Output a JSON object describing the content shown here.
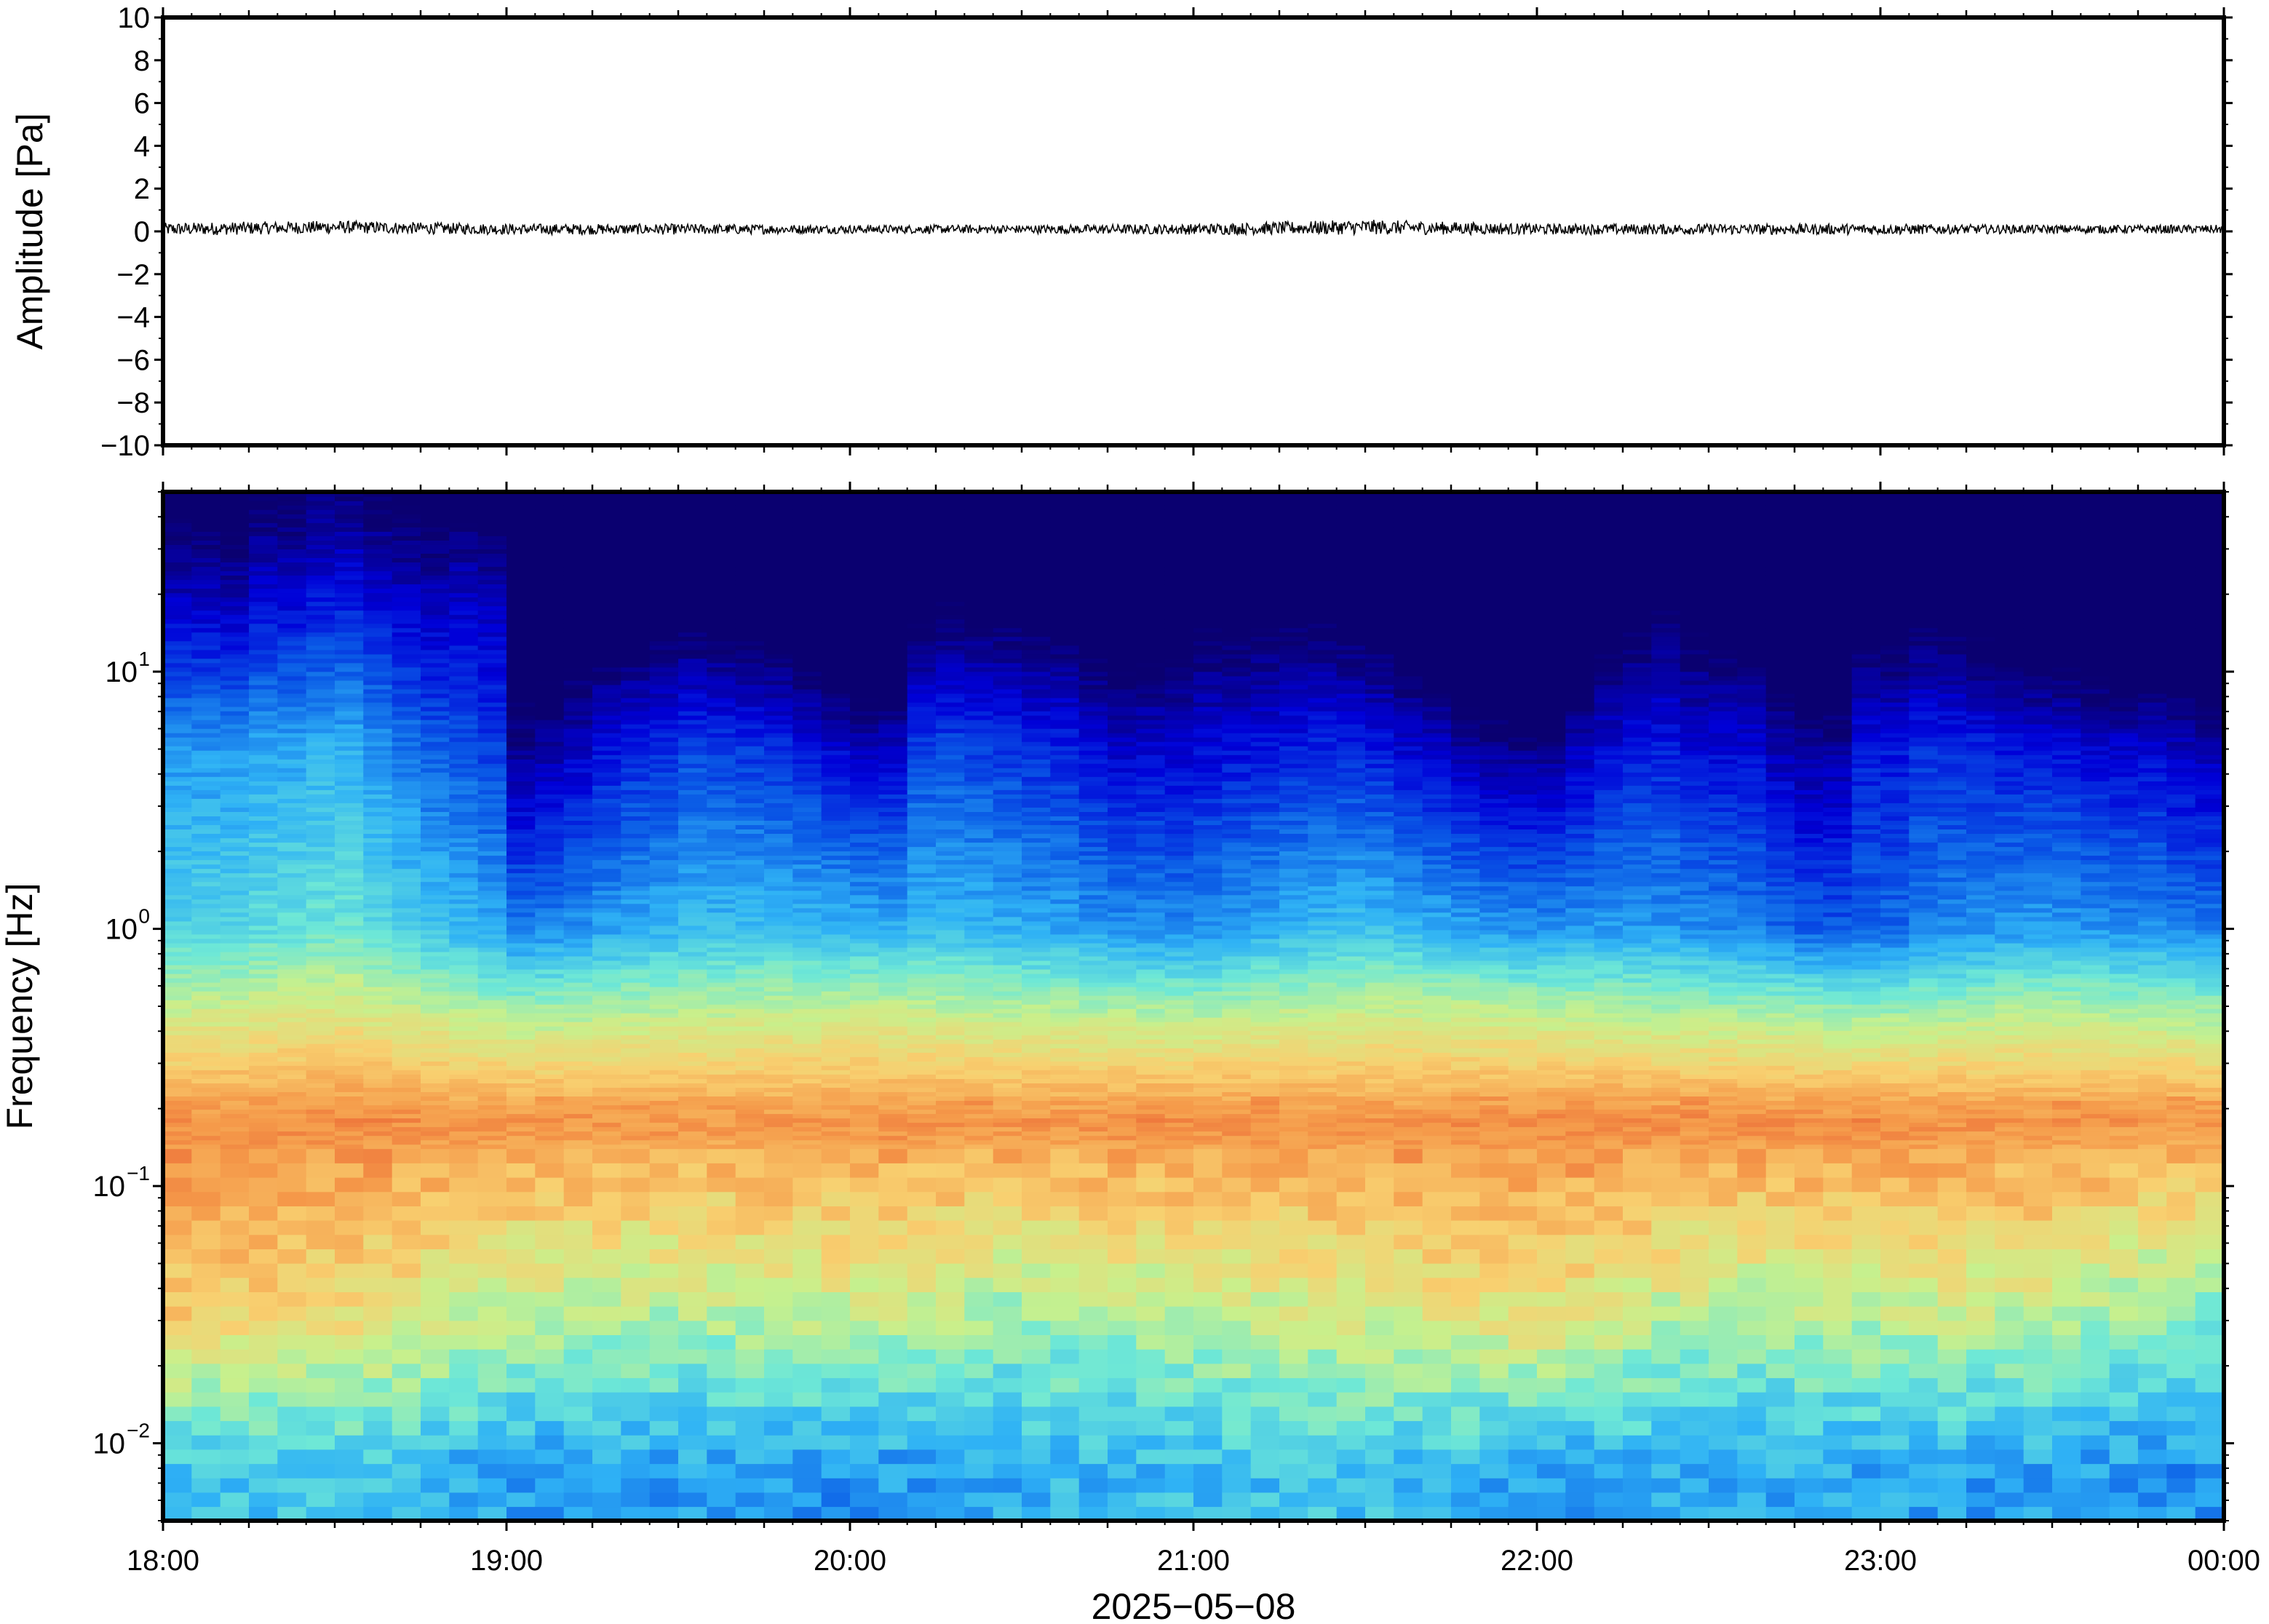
{
  "chart_data": [
    {
      "type": "line",
      "panel": "waveform",
      "ylabel": "Amplitude [Pa]",
      "xlabel": "",
      "ylim": [
        -10,
        10
      ],
      "yticks": [
        10,
        8,
        6,
        4,
        2,
        0,
        -2,
        -4,
        -6,
        -8,
        -10
      ],
      "ytick_labels": [
        "10",
        "8",
        "6",
        "4",
        "2",
        "0",
        "−2",
        "−4",
        "−6",
        "−8",
        "−10"
      ],
      "xlim": [
        "18:00",
        "00:00"
      ],
      "grid": false,
      "series": [
        {
          "x": [
            "18:00",
            "18:30",
            "19:00",
            "19:30",
            "20:00",
            "20:30",
            "21:00",
            "21:30",
            "22:00",
            "22:30",
            "23:00",
            "23:30",
            "00:00"
          ],
          "values": [
            0.1,
            0.2,
            0.1,
            0.1,
            0.1,
            0.1,
            0.1,
            0.2,
            0.1,
            0.1,
            0.1,
            0.1,
            0.1
          ],
          "envelope": [
            0.3,
            0.3,
            0.25,
            0.25,
            0.2,
            0.2,
            0.25,
            0.35,
            0.25,
            0.25,
            0.25,
            0.2,
            0.2
          ],
          "color": "#000000"
        }
      ]
    },
    {
      "type": "heatmap",
      "panel": "spectrogram",
      "ylabel": "Frequency [Hz]",
      "xlabel": "2025−05−08",
      "yscale": "log",
      "ylim": [
        0.005,
        50
      ],
      "yticks": [
        0.01,
        0.1,
        1,
        10
      ],
      "ytick_labels": [
        {
          "base": "10",
          "exp": "−2"
        },
        {
          "base": "10",
          "exp": "−1"
        },
        {
          "base": "10",
          "exp": "0"
        },
        {
          "base": "10",
          "exp": "1"
        }
      ],
      "x_tick_labels": [
        "18:00",
        "19:00",
        "20:00",
        "21:00",
        "22:00",
        "23:00",
        "00:00"
      ],
      "xlim": [
        "18:00",
        "00:00"
      ],
      "colormap": "jet",
      "colormap_stops": [
        "#0a0070",
        "#0000d8",
        "#0a5ae6",
        "#2fb2f5",
        "#6ee8d6",
        "#c8f08c",
        "#f8d070",
        "#f59a4a",
        "#e54a2a"
      ],
      "columns_per_hour": 12,
      "dominant_band_hz": [
        0.15,
        0.22
      ],
      "level_scale": "relative 0–1",
      "column_energy": [
        0.98,
        0.97,
        0.95,
        0.99,
        0.98,
        1,
        1,
        0.98,
        0.96,
        0.95,
        0.98,
        0.97,
        0.7,
        0.72,
        0.75,
        0.8,
        0.82,
        0.82,
        0.85,
        0.83,
        0.8,
        0.77,
        0.72,
        0.65,
        0.6,
        0.62,
        0.82,
        0.85,
        0.83,
        0.82,
        0.8,
        0.82,
        0.78,
        0.75,
        0.8,
        0.82,
        0.86,
        0.85,
        0.84,
        0.83,
        0.82,
        0.78,
        0.75,
        0.7,
        0.68,
        0.63,
        0.6,
        0.6,
        0.62,
        0.72,
        0.8,
        0.85,
        0.88,
        0.84,
        0.82,
        0.8,
        0.7,
        0.62,
        0.62,
        0.78,
        0.76,
        0.82,
        0.8,
        0.78,
        0.74,
        0.72,
        0.72,
        0.7,
        0.7,
        0.74,
        0.7,
        0.68
      ],
      "sample_rows": [
        {
          "freq_hz": 20,
          "levels": [
            0.1,
            0.15,
            0.1,
            0.05,
            0.08,
            0.1,
            0.05,
            0.12,
            0.08,
            0.06,
            0.1,
            0.08,
            0.05
          ]
        },
        {
          "freq_hz": 5,
          "levels": [
            0.35,
            0.38,
            0.2,
            0.3,
            0.32,
            0.3,
            0.2,
            0.3,
            0.25,
            0.22,
            0.28,
            0.3,
            0.25
          ]
        },
        {
          "freq_hz": 1,
          "levels": [
            0.45,
            0.5,
            0.35,
            0.42,
            0.45,
            0.4,
            0.35,
            0.45,
            0.4,
            0.35,
            0.3,
            0.4,
            0.35
          ]
        },
        {
          "freq_hz": 0.18,
          "levels": [
            0.88,
            0.9,
            0.88,
            0.87,
            0.88,
            0.88,
            0.9,
            0.88,
            0.9,
            0.9,
            0.9,
            0.88,
            0.88
          ]
        },
        {
          "freq_hz": 0.03,
          "levels": [
            0.75,
            0.7,
            0.6,
            0.58,
            0.62,
            0.55,
            0.6,
            0.65,
            0.7,
            0.58,
            0.6,
            0.62,
            0.5
          ]
        },
        {
          "freq_hz": 0.008,
          "levels": [
            0.4,
            0.42,
            0.35,
            0.35,
            0.33,
            0.38,
            0.4,
            0.42,
            0.35,
            0.38,
            0.36,
            0.35,
            0.33
          ]
        }
      ]
    }
  ]
}
